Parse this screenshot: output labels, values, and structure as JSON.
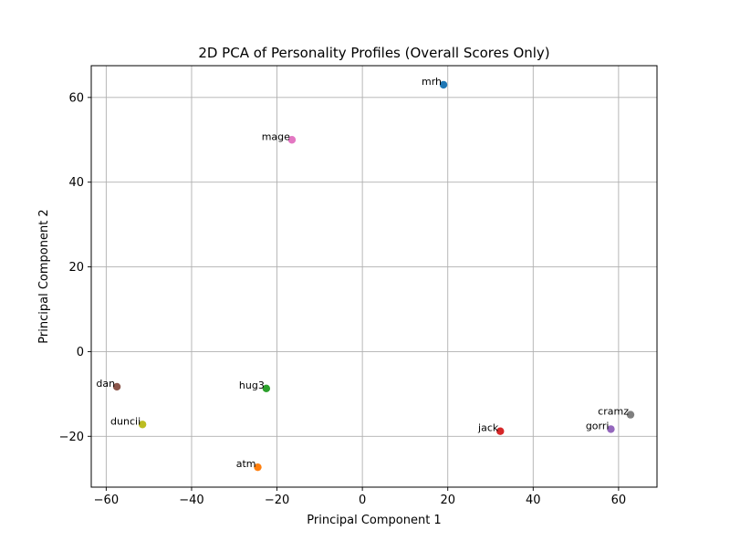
{
  "chart_data": {
    "type": "scatter",
    "title": "2D PCA of Personality Profiles (Overall Scores Only)",
    "xlabel": "Principal Component 1",
    "ylabel": "Principal Component 2",
    "xlim": [
      -63.5,
      69
    ],
    "ylim": [
      -32,
      67.5
    ],
    "xticks": [
      -60,
      -40,
      -20,
      0,
      20,
      40,
      60
    ],
    "yticks": [
      -20,
      0,
      20,
      40,
      60
    ],
    "xtick_labels": [
      "−60",
      "−40",
      "−20",
      "0",
      "20",
      "40",
      "60"
    ],
    "ytick_labels": [
      "−20",
      "0",
      "20",
      "40",
      "60"
    ],
    "grid": true,
    "points": [
      {
        "label": "mrh",
        "x": 19.0,
        "y": 63.0,
        "color": "#1f77b4"
      },
      {
        "label": "atm",
        "x": -24.5,
        "y": -27.3,
        "color": "#ff7f0e"
      },
      {
        "label": "hug3",
        "x": -22.5,
        "y": -8.7,
        "color": "#2ca02c"
      },
      {
        "label": "jack",
        "x": 32.3,
        "y": -18.8,
        "color": "#d62728"
      },
      {
        "label": "gorri",
        "x": 58.2,
        "y": -18.3,
        "color": "#9467bd"
      },
      {
        "label": "dan",
        "x": -57.5,
        "y": -8.3,
        "color": "#8c564b"
      },
      {
        "label": "mage",
        "x": -16.5,
        "y": 50.0,
        "color": "#e377c2"
      },
      {
        "label": "cramz",
        "x": 62.8,
        "y": -14.9,
        "color": "#7f7f7f"
      },
      {
        "label": "duncii",
        "x": -51.5,
        "y": -17.2,
        "color": "#bcbd22"
      }
    ]
  }
}
